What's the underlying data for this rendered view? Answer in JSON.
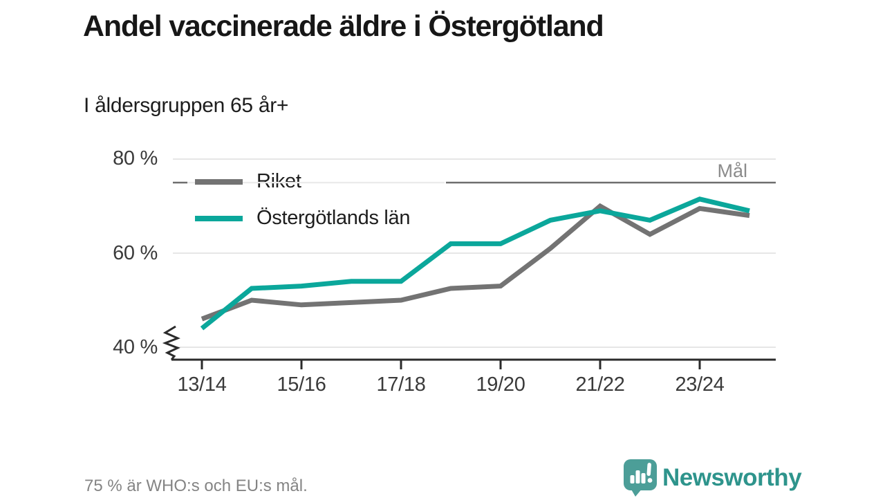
{
  "header": {
    "title": "Andel vaccinerade äldre i Östergötland",
    "subtitle": "I åldersgruppen 65 år+"
  },
  "chart_data": {
    "type": "line",
    "categories": [
      "13/14",
      "14/15",
      "15/16",
      "16/17",
      "17/18",
      "18/19",
      "19/20",
      "20/21",
      "21/22",
      "22/23",
      "23/24",
      "24/25"
    ],
    "x_tick_labels": [
      "13/14",
      "15/16",
      "17/18",
      "19/20",
      "21/22",
      "23/24"
    ],
    "y_tick_labels": [
      "80 %",
      "60 %",
      "40 %"
    ],
    "y_ticks": [
      80,
      60,
      40
    ],
    "ylim": [
      37.5,
      82
    ],
    "y_axis_break": true,
    "unit": "%",
    "grid": "horizontal",
    "legend_position": "top-left-inside",
    "series": [
      {
        "name": "Riket",
        "color": "#737373",
        "values": [
          46,
          50,
          49,
          49.5,
          50,
          52.5,
          53,
          61,
          70,
          64,
          69.5,
          68
        ]
      },
      {
        "name": "Östergötlands län",
        "color": "#0BA79B",
        "values": [
          44,
          52.5,
          53,
          54,
          54,
          62,
          62,
          67,
          69,
          67,
          71.5,
          69
        ]
      }
    ],
    "goal": {
      "label": "Mål",
      "value": 75,
      "color": "#6e6e6e"
    }
  },
  "legend": {
    "items": [
      {
        "label": "Riket"
      },
      {
        "label": "Östergötlands län"
      }
    ]
  },
  "footer": {
    "note": "75 % är WHO:s och EU:s mål.",
    "brand": "Newsworthy"
  },
  "icons": {
    "logo": "newsworthy-speech-bubble-chart-icon"
  },
  "colors": {
    "accent_teal": "#0BA79B",
    "line_gray": "#737373",
    "axis": "#2b2b2b",
    "gridline": "#e3e3e3",
    "goal_line": "#6e6e6e",
    "muted_text": "#8b8b8b",
    "brand_teal": "#2E948C"
  }
}
